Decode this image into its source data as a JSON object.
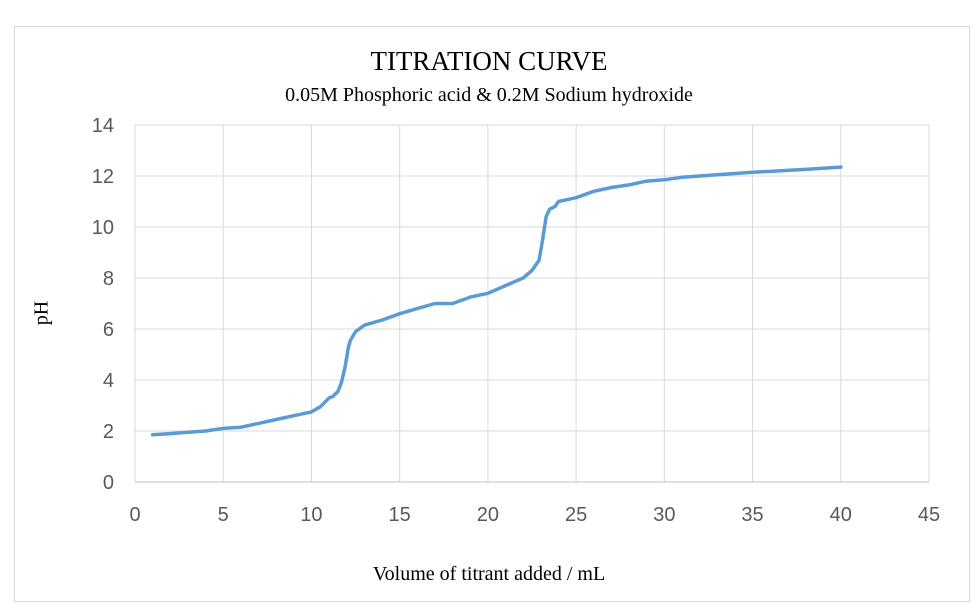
{
  "chart_data": {
    "type": "line",
    "title": "TITRATION CURVE",
    "subtitle": "0.05M Phosphoric acid & 0.2M Sodium hydroxide",
    "xlabel": "Volume of titrant added / mL",
    "ylabel": "pH",
    "xlim": [
      0,
      45
    ],
    "ylim": [
      0,
      14
    ],
    "x_ticks": [
      0,
      5,
      10,
      15,
      20,
      25,
      30,
      35,
      40,
      45
    ],
    "y_ticks": [
      0,
      2,
      4,
      6,
      8,
      10,
      12,
      14
    ],
    "grid": true,
    "legend": "none",
    "series_color": "#5b9bd5",
    "series": [
      {
        "name": "pH",
        "x": [
          1,
          2,
          3,
          4,
          5,
          6,
          7,
          8,
          9,
          10,
          10.5,
          11,
          11.2,
          11.5,
          11.7,
          11.9,
          12.1,
          12.2,
          12.5,
          13,
          14,
          15,
          16,
          17,
          18,
          19,
          20,
          21,
          22,
          22.5,
          22.9,
          23.1,
          23.3,
          23.5,
          23.8,
          24,
          25,
          26,
          27,
          28,
          29,
          30,
          31,
          32,
          33,
          34,
          35,
          36,
          37,
          38,
          39,
          40
        ],
        "y": [
          1.85,
          1.9,
          1.95,
          2.0,
          2.1,
          2.15,
          2.3,
          2.45,
          2.6,
          2.75,
          2.95,
          3.3,
          3.35,
          3.55,
          3.9,
          4.5,
          5.3,
          5.55,
          5.9,
          6.15,
          6.35,
          6.6,
          6.8,
          7.0,
          7.0,
          7.25,
          7.4,
          7.7,
          8.0,
          8.3,
          8.7,
          9.5,
          10.4,
          10.7,
          10.8,
          11.0,
          11.15,
          11.4,
          11.55,
          11.65,
          11.8,
          11.85,
          11.95,
          12.0,
          12.05,
          12.1,
          12.15,
          12.18,
          12.22,
          12.26,
          12.3,
          12.35
        ]
      }
    ]
  }
}
